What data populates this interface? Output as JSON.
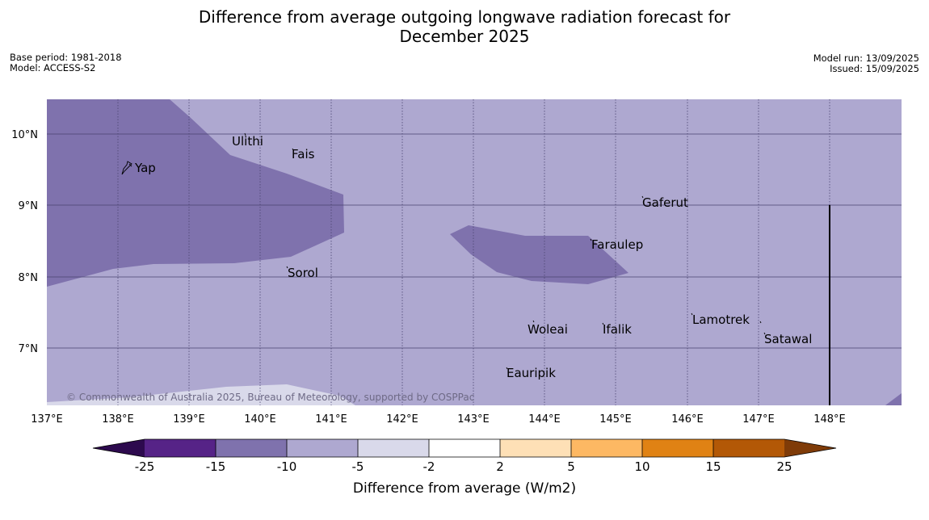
{
  "title_line1": "Difference from average outgoing longwave radiation forecast for",
  "title_line2": "December 2025",
  "meta_left": [
    "Base period: 1981-2018",
    "Model: ACCESS-S2"
  ],
  "meta_right": [
    "Model run: 13/09/2025",
    "Issued: 15/09/2025"
  ],
  "lat_labels": [
    "10°N",
    "9°N",
    "8°N",
    "7°N"
  ],
  "lon_labels": [
    "137°E",
    "138°E",
    "139°E",
    "140°E",
    "141°E",
    "142°E",
    "143°E",
    "144°E",
    "145°E",
    "146°E",
    "147°E",
    "148°E"
  ],
  "places": [
    "Yap",
    "Ulithi",
    "Fais",
    "Gaferut",
    "Faraulep",
    "Sorol",
    "Lamotrek",
    "Woleai",
    "Ifalik",
    "Satawal",
    "Eauripik"
  ],
  "copyright": "© Commonwealth of Australia 2025, Bureau of Meteorology, supported by COSPPac",
  "colorbar": {
    "ticks": [
      "-25",
      "-15",
      "-10",
      "-5",
      "-2",
      "2",
      "5",
      "10",
      "15",
      "25"
    ],
    "label": "Difference from average (W/m2)",
    "colors": [
      "#2d0a4e",
      "#562387",
      "#7f72ad",
      "#aea8d0",
      "#d9d9ea",
      "#ffffff",
      "#fee0b6",
      "#fdb863",
      "#e08214",
      "#b35806",
      "#7f3b08"
    ]
  }
}
